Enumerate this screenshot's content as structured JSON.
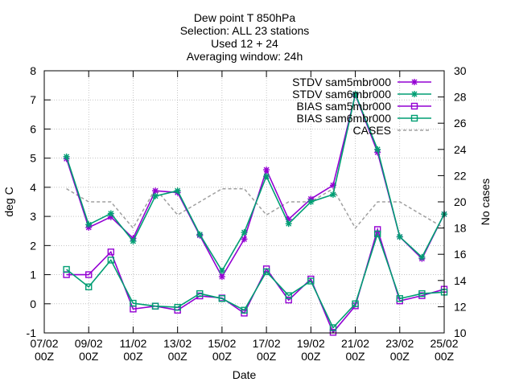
{
  "chart_data": {
    "type": "line",
    "title_lines": [
      "Dew point T 850hPa",
      "Selection: ALL      23 stations",
      "Used 12 + 24",
      "Averaging window: 24h"
    ],
    "xlabel": "Date",
    "ylabel": "deg C",
    "y2label": "No cases",
    "x_ticks": [
      {
        "pos": 0,
        "line1": "07/02",
        "line2": "00Z"
      },
      {
        "pos": 2,
        "line1": "09/02",
        "line2": "00Z"
      },
      {
        "pos": 4,
        "line1": "11/02",
        "line2": "00Z"
      },
      {
        "pos": 6,
        "line1": "13/02",
        "line2": "00Z"
      },
      {
        "pos": 8,
        "line1": "15/02",
        "line2": "00Z"
      },
      {
        "pos": 10,
        "line1": "17/02",
        "line2": "00Z"
      },
      {
        "pos": 12,
        "line1": "19/02",
        "line2": "00Z"
      },
      {
        "pos": 14,
        "line1": "21/02",
        "line2": "00Z"
      },
      {
        "pos": 16,
        "line1": "23/02",
        "line2": "00Z"
      },
      {
        "pos": 18,
        "line1": "25/02",
        "line2": "00Z"
      }
    ],
    "xlim": [
      0,
      18
    ],
    "ylim": [
      -1,
      8
    ],
    "y_ticks": [
      -1,
      0,
      1,
      2,
      3,
      4,
      5,
      6,
      7,
      8
    ],
    "y2lim": [
      10,
      30
    ],
    "y2_ticks": [
      10,
      12,
      14,
      16,
      18,
      20,
      22,
      24,
      26,
      28,
      30
    ],
    "grid": true,
    "legend_position": "top-right",
    "x": [
      1,
      2,
      3,
      4,
      5,
      6,
      7,
      8,
      9,
      10,
      11,
      12,
      13,
      14,
      15,
      16,
      17,
      18
    ],
    "series": [
      {
        "name": "STDV sam5mbr000",
        "axis": "y",
        "color": "#9400d3",
        "marker": "star",
        "dash": false,
        "values": [
          4.98,
          2.62,
          2.98,
          2.25,
          3.88,
          3.82,
          2.35,
          0.93,
          2.22,
          4.6,
          2.9,
          3.6,
          4.07,
          7.18,
          5.2,
          2.3,
          1.55,
          3.08
        ]
      },
      {
        "name": "STDV sam6mbr000",
        "axis": "y",
        "color": "#009e73",
        "marker": "star",
        "dash": false,
        "values": [
          5.05,
          2.72,
          3.1,
          2.15,
          3.7,
          3.88,
          2.38,
          1.13,
          2.45,
          4.38,
          2.75,
          3.5,
          3.75,
          7.2,
          5.3,
          2.3,
          1.6,
          3.08
        ]
      },
      {
        "name": "BIAS sam5mbr000",
        "axis": "y",
        "color": "#9400d3",
        "marker": "square",
        "dash": false,
        "values": [
          1.0,
          1.0,
          1.78,
          -0.18,
          -0.08,
          -0.22,
          0.27,
          0.2,
          -0.32,
          1.2,
          0.13,
          0.85,
          -0.98,
          -0.07,
          2.55,
          0.1,
          0.28,
          0.5
        ]
      },
      {
        "name": "BIAS sam6mbr000",
        "axis": "y",
        "color": "#009e73",
        "marker": "square",
        "dash": false,
        "values": [
          1.18,
          0.58,
          1.5,
          0.02,
          -0.08,
          -0.12,
          0.35,
          0.18,
          -0.22,
          1.1,
          0.28,
          0.78,
          -0.82,
          0.0,
          2.4,
          0.18,
          0.35,
          0.4
        ]
      },
      {
        "name": "CASES",
        "axis": "y2",
        "color": "#a0a0a0",
        "marker": "none",
        "dash": true,
        "values": [
          21,
          20,
          20,
          18,
          21,
          19,
          20,
          21,
          21,
          19,
          20,
          20,
          21,
          18,
          20,
          20,
          19,
          18
        ]
      }
    ]
  }
}
